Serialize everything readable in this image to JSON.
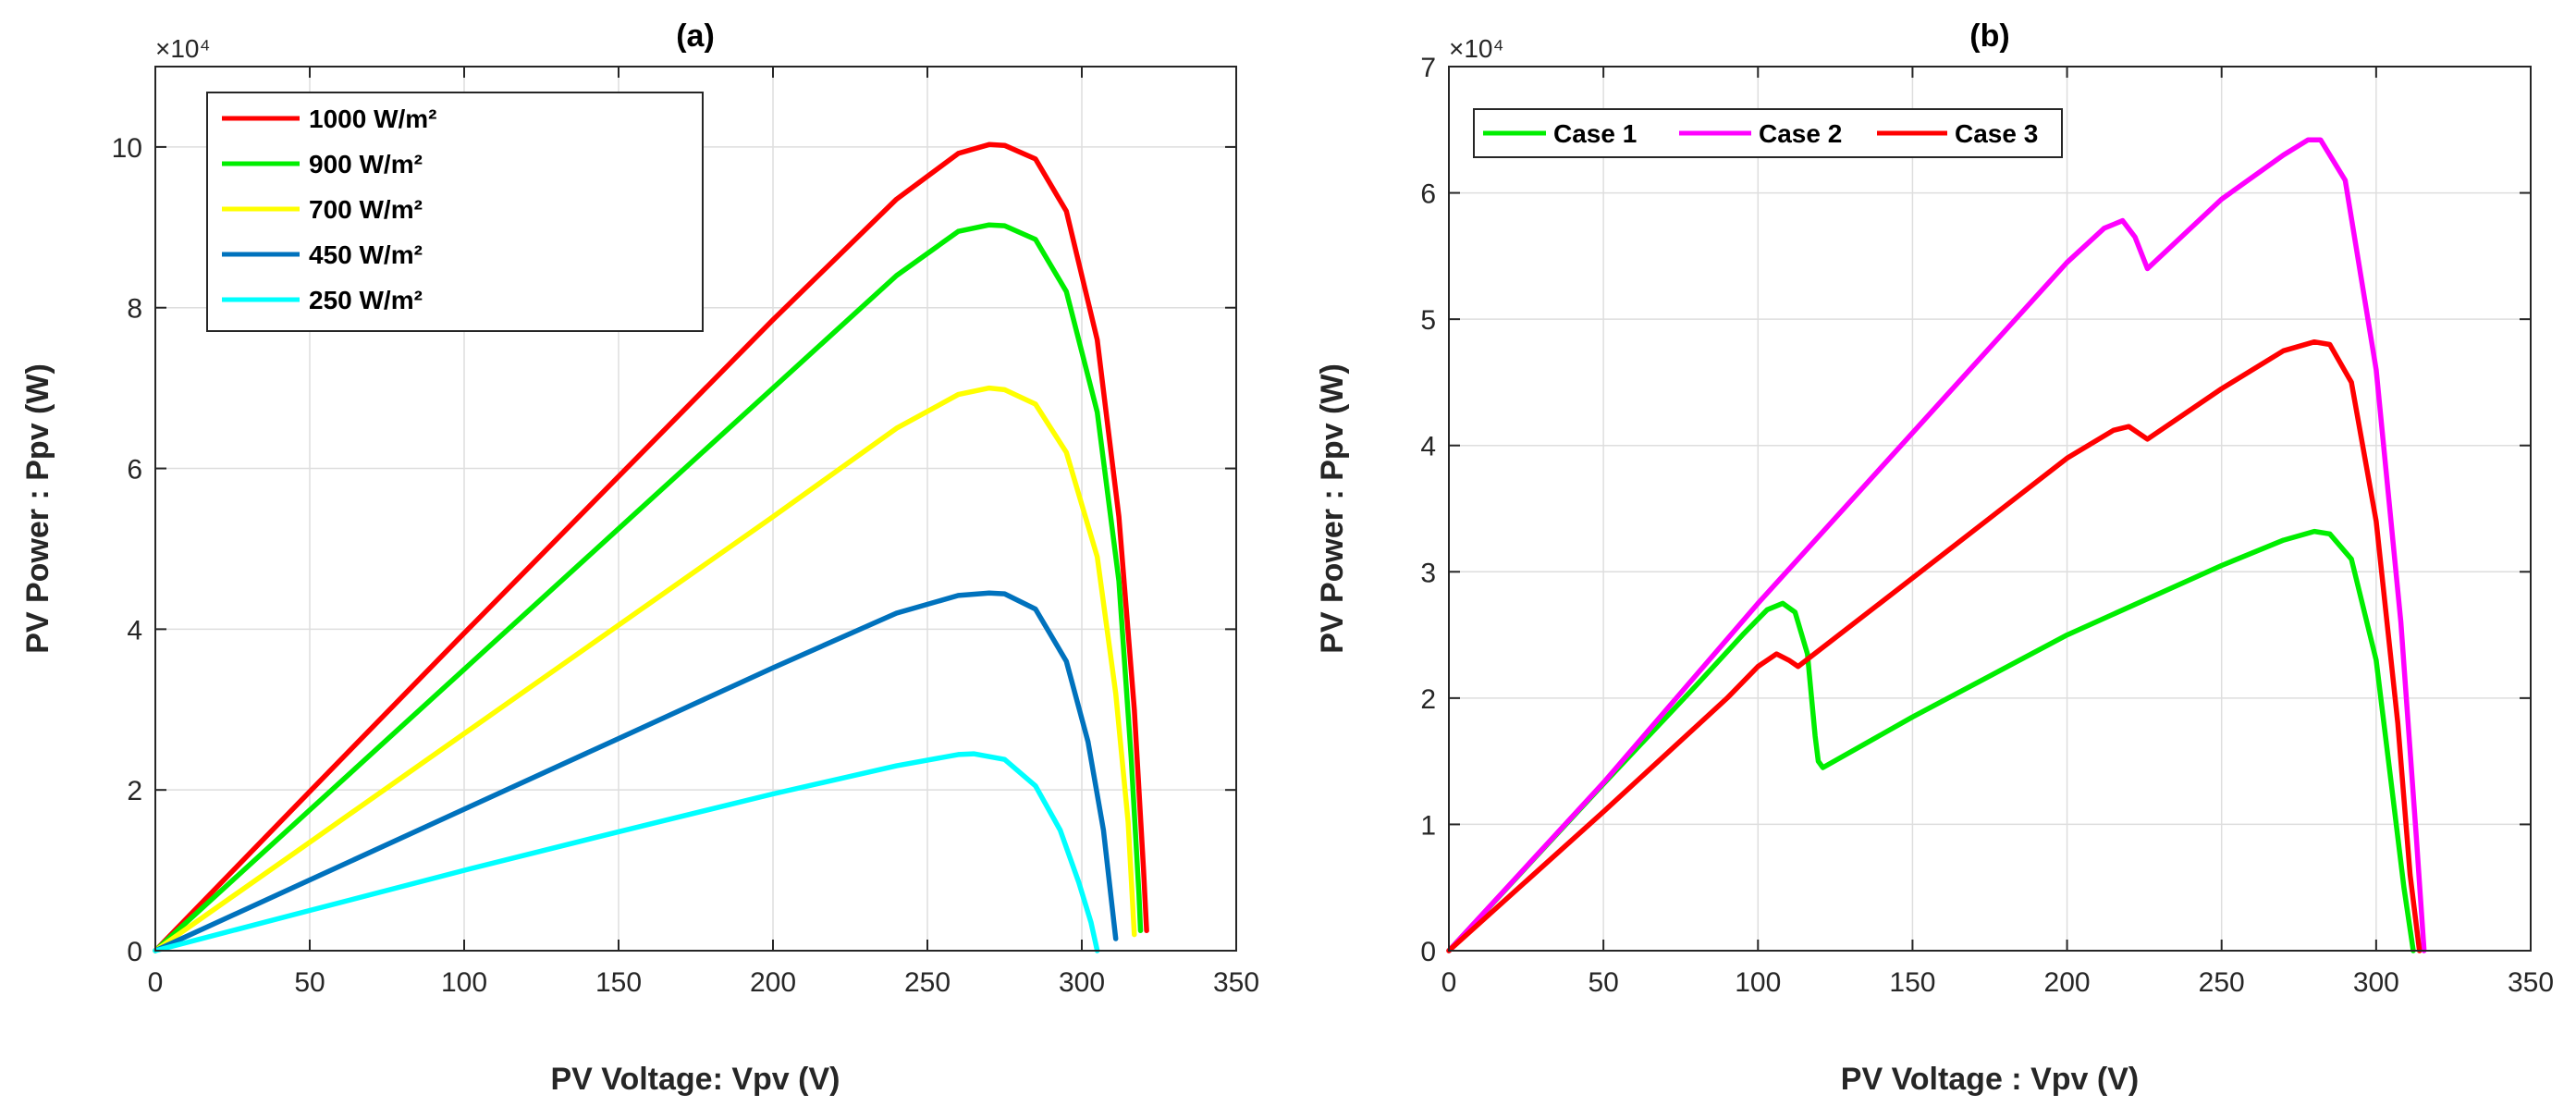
{
  "chart_data": [
    {
      "type": "line",
      "title": "(a)",
      "xlabel": "PV Voltage: Vpv (V)",
      "ylabel": "PV Power : Ppv (W)",
      "y_exponent_label": "×10⁴",
      "xlim": [
        0,
        350
      ],
      "ylim": [
        0,
        11
      ],
      "xticks": [
        0,
        50,
        100,
        150,
        200,
        250,
        300,
        350
      ],
      "yticks": [
        0,
        2,
        4,
        6,
        8,
        10
      ],
      "grid": true,
      "legend_position": "top-left",
      "series": [
        {
          "name": "1000 W/m²",
          "color": "#ff0000",
          "x": [
            0,
            50,
            100,
            150,
            200,
            240,
            260,
            270,
            275,
            285,
            295,
            305,
            312,
            317,
            320,
            321
          ],
          "y": [
            0,
            1.98,
            3.95,
            5.9,
            7.85,
            9.35,
            9.92,
            10.03,
            10.02,
            9.85,
            9.2,
            7.6,
            5.4,
            3.0,
            1.0,
            0.25
          ]
        },
        {
          "name": "900 W/m²",
          "color": "#00ee00",
          "x": [
            0,
            50,
            100,
            150,
            200,
            240,
            260,
            270,
            275,
            285,
            295,
            305,
            312,
            316,
            318.5,
            319
          ],
          "y": [
            0,
            1.75,
            3.5,
            5.25,
            7.0,
            8.4,
            8.95,
            9.03,
            9.02,
            8.85,
            8.2,
            6.7,
            4.6,
            2.4,
            0.7,
            0.25
          ]
        },
        {
          "name": "700 W/m²",
          "color": "#ffff00",
          "x": [
            0,
            50,
            100,
            150,
            200,
            240,
            260,
            270,
            275,
            285,
            295,
            305,
            311,
            315,
            317
          ],
          "y": [
            0,
            1.35,
            2.7,
            4.05,
            5.4,
            6.5,
            6.92,
            7.0,
            6.98,
            6.8,
            6.2,
            4.9,
            3.2,
            1.6,
            0.2
          ]
        },
        {
          "name": "450 W/m²",
          "color": "#0072bd",
          "x": [
            0,
            50,
            100,
            150,
            200,
            240,
            260,
            270,
            275,
            285,
            295,
            302,
            307,
            311
          ],
          "y": [
            0,
            0.88,
            1.76,
            2.64,
            3.52,
            4.2,
            4.42,
            4.45,
            4.44,
            4.25,
            3.6,
            2.6,
            1.5,
            0.15
          ]
        },
        {
          "name": "250 W/m²",
          "color": "#00ffff",
          "x": [
            0,
            50,
            100,
            150,
            200,
            240,
            260,
            265,
            275,
            285,
            293,
            299,
            303,
            305
          ],
          "y": [
            0,
            0.5,
            1.0,
            1.48,
            1.95,
            2.3,
            2.44,
            2.45,
            2.38,
            2.05,
            1.5,
            0.85,
            0.35,
            0.0
          ]
        }
      ]
    },
    {
      "type": "line",
      "title": "(b)",
      "xlabel": "PV Voltage : Vpv (V)",
      "ylabel": "PV Power : Ppv (W)",
      "y_exponent_label": "×10⁴",
      "xlim": [
        0,
        350
      ],
      "ylim": [
        0,
        7
      ],
      "xticks": [
        0,
        50,
        100,
        150,
        200,
        250,
        300,
        350
      ],
      "yticks": [
        0,
        1,
        2,
        3,
        4,
        5,
        6,
        7
      ],
      "grid": true,
      "legend_position": "top-left",
      "series": [
        {
          "name": "Case 1",
          "color": "#00ee00",
          "x": [
            0,
            50,
            80,
            95,
            103,
            108,
            112,
            116,
            118.5,
            119.5,
            121,
            150,
            200,
            250,
            270,
            280,
            285,
            292,
            300,
            305,
            309,
            312
          ],
          "y": [
            0,
            1.32,
            2.1,
            2.5,
            2.7,
            2.75,
            2.68,
            2.35,
            1.7,
            1.5,
            1.45,
            1.85,
            2.5,
            3.05,
            3.25,
            3.32,
            3.3,
            3.1,
            2.3,
            1.3,
            0.5,
            0.0
          ]
        },
        {
          "name": "Case 2",
          "color": "#ff00ff",
          "x": [
            0,
            50,
            100,
            150,
            200,
            212,
            218,
            222,
            226,
            250,
            270,
            278,
            282,
            290,
            300,
            308,
            313,
            315.5
          ],
          "y": [
            0,
            1.33,
            2.75,
            4.1,
            5.45,
            5.72,
            5.78,
            5.65,
            5.4,
            5.95,
            6.3,
            6.42,
            6.42,
            6.1,
            4.6,
            2.6,
            0.9,
            0.0
          ]
        },
        {
          "name": "Case 3",
          "color": "#ff0000",
          "x": [
            0,
            50,
            90,
            100,
            106,
            110,
            113,
            150,
            200,
            215,
            220,
            226,
            250,
            270,
            280,
            285,
            292,
            300,
            307,
            311,
            314
          ],
          "y": [
            0,
            1.1,
            2.0,
            2.25,
            2.35,
            2.3,
            2.25,
            2.95,
            3.9,
            4.12,
            4.15,
            4.05,
            4.45,
            4.75,
            4.82,
            4.8,
            4.5,
            3.4,
            1.8,
            0.6,
            0.0
          ]
        }
      ]
    }
  ]
}
